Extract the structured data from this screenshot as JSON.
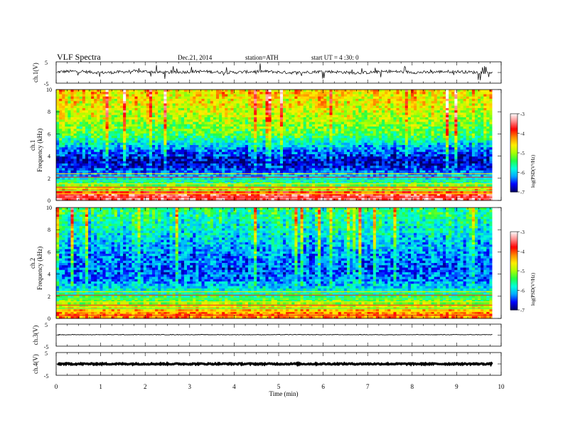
{
  "header": {
    "title": "VLF  Spectra",
    "date": "Dec.21, 2014",
    "station": "station=ATH",
    "start": "start  UT  =   4  :30: 0"
  },
  "colors": {
    "ink": "#000000",
    "colormap": [
      "#000066",
      "#0000ff",
      "#00aaff",
      "#00ffdd",
      "#22ff44",
      "#aaff00",
      "#ffee00",
      "#ff8800",
      "#ff0000",
      "#ff8888",
      "#ffffff"
    ]
  },
  "chart_data": [
    {
      "type": "line",
      "ylabel": "ch.1(V)",
      "ylim": [
        -5,
        5
      ],
      "yticks": [
        "5",
        "-5"
      ],
      "x": [
        0,
        1,
        2,
        3,
        4,
        5,
        6,
        7,
        8,
        9,
        9.8
      ],
      "y": [
        0.3,
        0.2,
        0.3,
        0.2,
        0.3,
        0.2,
        0.2,
        0.1,
        0.3,
        0.2,
        0.3
      ],
      "note_noise": "broadband waveform with sferic spikes"
    },
    {
      "type": "heatmap",
      "channel": "ch.1",
      "ylabel": "Frequency  (kHz)",
      "ylim": [
        0,
        10
      ],
      "yticks": [
        "0",
        "2",
        "4",
        "6",
        "8",
        "10"
      ],
      "colorbar_label": "log(PSD(V²/Hz)",
      "colorbar_ticks": [
        "-3",
        "-4",
        "-5",
        "-6",
        "-7"
      ],
      "clim": [
        -7,
        -3
      ],
      "profile_freq_khz": [
        0.5,
        1.5,
        2.5,
        3.5,
        4.5,
        6,
        8,
        10
      ],
      "profile_logpsd": [
        -3.5,
        -5.5,
        -6.3,
        -6.8,
        -6.3,
        -5.3,
        -4.8,
        -4.5
      ]
    },
    {
      "type": "heatmap",
      "channel": "ch.2",
      "ylabel": "Frequency  (kHz)",
      "ylim": [
        0,
        10
      ],
      "yticks": [
        "0",
        "2",
        "4",
        "6",
        "8",
        "10"
      ],
      "colorbar_label": "log(PSD(V²/Hz)",
      "colorbar_ticks": [
        "-3",
        "-4",
        "-5",
        "-6",
        "-7"
      ],
      "clim": [
        -7,
        -3
      ],
      "profile_freq_khz": [
        0.5,
        1.5,
        2.5,
        3.5,
        4.5,
        6,
        8,
        10
      ],
      "profile_logpsd": [
        -4.2,
        -5.2,
        -5.8,
        -6.3,
        -6.4,
        -6.2,
        -5.8,
        -5.5
      ]
    },
    {
      "type": "line",
      "ylabel": "ch.3(V)",
      "ylim": [
        -5,
        5
      ],
      "yticks": [
        "5",
        "-5"
      ],
      "x": [
        0,
        9.8
      ],
      "y": [
        0.2,
        0.2
      ]
    },
    {
      "type": "line",
      "ylabel": "ch.4(V)",
      "ylim": [
        -5,
        5
      ],
      "yticks": [
        "5",
        "-5"
      ],
      "x": [
        0,
        9.8
      ],
      "y": [
        0,
        0
      ]
    }
  ],
  "xaxis": {
    "label": "Time  (min)",
    "ticks": [
      "0",
      "1",
      "2",
      "3",
      "4",
      "5",
      "6",
      "7",
      "8",
      "9",
      "10"
    ],
    "xlim": [
      0,
      10
    ],
    "data_end": 9.8
  }
}
